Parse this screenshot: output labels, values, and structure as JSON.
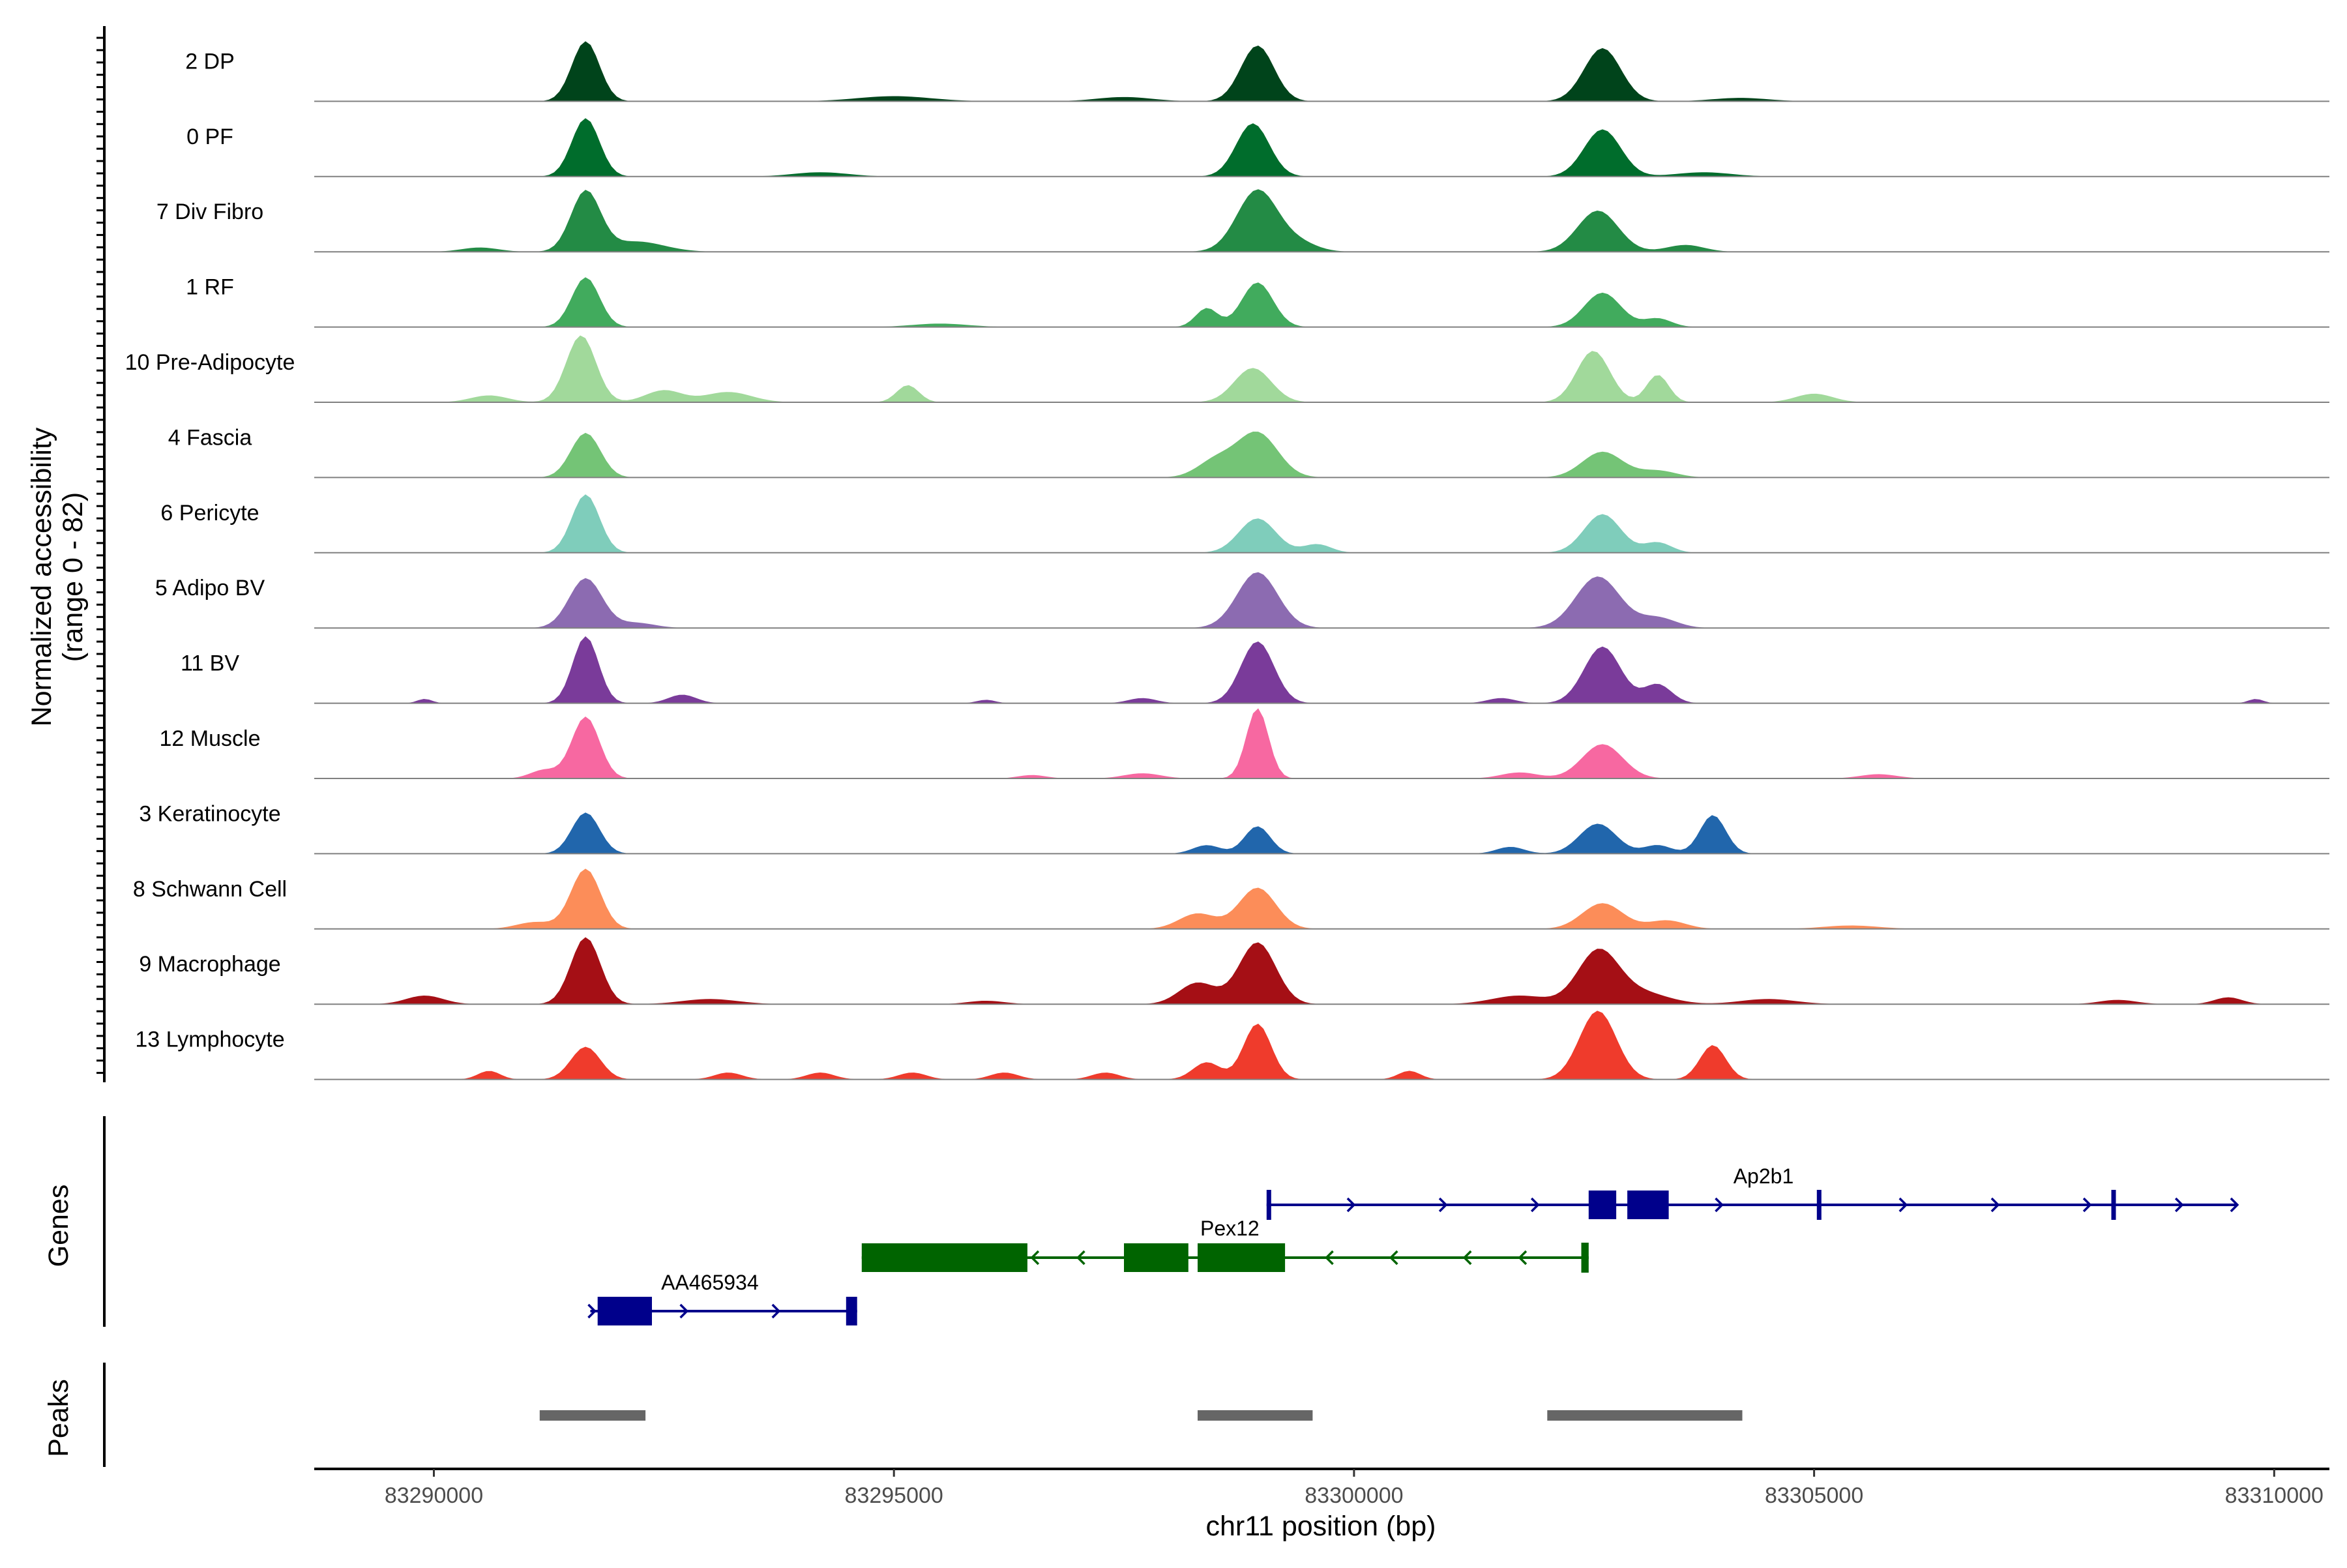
{
  "chart_data": {
    "type": "area",
    "title": "",
    "xlabel": "chr11 position (bp)",
    "ylabel": [
      "Normalized accessibility",
      "(range 0 - 82)"
    ],
    "y_range": [
      0,
      82
    ],
    "xlim": [
      83288700,
      83310600
    ],
    "x_ticks": [
      83290000,
      83295000,
      83300000,
      83305000,
      83310000
    ],
    "x_tick_labels": [
      "83290000",
      "83295000",
      "83300000",
      "83305000",
      "83310000"
    ],
    "panel_labels": {
      "genes": "Genes",
      "peaks": "Peaks"
    },
    "series": [
      {
        "name": "2 DP",
        "color": "#00441b",
        "amplitude": 1.0,
        "peaks": [
          [
            83291650,
            70,
            150
          ],
          [
            83298950,
            65,
            180
          ],
          [
            83302700,
            62,
            200
          ],
          [
            83295000,
            6,
            400
          ],
          [
            83297500,
            5,
            300
          ],
          [
            83304200,
            4,
            300
          ]
        ]
      },
      {
        "name": "0 PF",
        "color": "#006d2c",
        "amplitude": 1.0,
        "peaks": [
          [
            83291650,
            68,
            150
          ],
          [
            83298900,
            62,
            180
          ],
          [
            83302700,
            55,
            200
          ],
          [
            83294200,
            5,
            300
          ],
          [
            83303800,
            5,
            300
          ]
        ]
      },
      {
        "name": "7 Div Fibro",
        "color": "#238b45",
        "amplitude": 1.0,
        "peaks": [
          [
            83291650,
            70,
            160
          ],
          [
            83298950,
            72,
            220
          ],
          [
            83302650,
            48,
            220
          ],
          [
            83292200,
            12,
            300
          ],
          [
            83299400,
            10,
            200
          ],
          [
            83303600,
            8,
            200
          ],
          [
            83290500,
            5,
            200
          ]
        ]
      },
      {
        "name": "1 RF",
        "color": "#41ab5d",
        "amplitude": 1.0,
        "peaks": [
          [
            83291650,
            58,
            150
          ],
          [
            83298950,
            52,
            170
          ],
          [
            83302700,
            40,
            200
          ],
          [
            83298400,
            22,
            120
          ],
          [
            83303300,
            10,
            150
          ],
          [
            83295500,
            4,
            300
          ]
        ]
      },
      {
        "name": "10 Pre-Adipocyte",
        "color": "#a1d99b",
        "amplitude": 1.0,
        "peaks": [
          [
            83291600,
            78,
            160
          ],
          [
            83298900,
            40,
            200
          ],
          [
            83302600,
            60,
            180
          ],
          [
            83303300,
            32,
            120
          ],
          [
            83295150,
            20,
            120
          ],
          [
            83293200,
            12,
            250
          ],
          [
            83292500,
            14,
            200
          ],
          [
            83290600,
            8,
            200
          ],
          [
            83305000,
            10,
            200
          ]
        ]
      },
      {
        "name": "4 Fascia",
        "color": "#74c476",
        "amplitude": 1.0,
        "peaks": [
          [
            83291650,
            52,
            160
          ],
          [
            83298950,
            52,
            220
          ],
          [
            83302700,
            30,
            220
          ],
          [
            83298500,
            20,
            200
          ],
          [
            83303300,
            8,
            200
          ]
        ]
      },
      {
        "name": "6 Pericyte",
        "color": "#7fcdbb",
        "amplitude": 1.0,
        "peaks": [
          [
            83291650,
            68,
            150
          ],
          [
            83298950,
            40,
            200
          ],
          [
            83302700,
            45,
            200
          ],
          [
            83299600,
            10,
            150
          ],
          [
            83303300,
            12,
            150
          ]
        ]
      },
      {
        "name": "5 Adipo BV",
        "color": "#8c6bb1",
        "amplitude": 1.0,
        "peaks": [
          [
            83291650,
            58,
            180
          ],
          [
            83298950,
            65,
            220
          ],
          [
            83302650,
            60,
            240
          ],
          [
            83303300,
            12,
            200
          ],
          [
            83292200,
            6,
            200
          ]
        ]
      },
      {
        "name": "11 BV",
        "color": "#7a3b9a",
        "amplitude": 1.0,
        "peaks": [
          [
            83291650,
            78,
            140
          ],
          [
            83298950,
            72,
            180
          ],
          [
            83302700,
            66,
            200
          ],
          [
            83303300,
            22,
            150
          ],
          [
            83292700,
            10,
            150
          ],
          [
            83289900,
            5,
            80
          ],
          [
            83296000,
            4,
            100
          ],
          [
            83309800,
            5,
            80
          ],
          [
            83297700,
            6,
            150
          ],
          [
            83301600,
            6,
            150
          ]
        ]
      },
      {
        "name": "12 Muscle",
        "color": "#f768a1",
        "amplitude": 1.0,
        "peaks": [
          [
            83291650,
            72,
            150
          ],
          [
            83298950,
            82,
            120
          ],
          [
            83302700,
            40,
            220
          ],
          [
            83291200,
            10,
            150
          ],
          [
            83297700,
            6,
            200
          ],
          [
            83301800,
            7,
            200
          ],
          [
            83305700,
            5,
            200
          ],
          [
            83296500,
            4,
            150
          ]
        ]
      },
      {
        "name": "3 Keratinocyte",
        "color": "#2166ac",
        "amplitude": 1.0,
        "peaks": [
          [
            83291650,
            48,
            150
          ],
          [
            83298950,
            32,
            140
          ],
          [
            83302650,
            35,
            200
          ],
          [
            83303900,
            45,
            140
          ],
          [
            83298400,
            10,
            150
          ],
          [
            83301700,
            8,
            150
          ],
          [
            83303300,
            10,
            150
          ]
        ]
      },
      {
        "name": "8 Schwann Cell",
        "color": "#fc8d59",
        "amplitude": 1.0,
        "peaks": [
          [
            83291650,
            70,
            160
          ],
          [
            83298950,
            48,
            200
          ],
          [
            83302700,
            30,
            220
          ],
          [
            83298300,
            18,
            200
          ],
          [
            83303400,
            10,
            200
          ],
          [
            83291100,
            8,
            200
          ],
          [
            83305400,
            4,
            300
          ]
        ]
      },
      {
        "name": "9 Macrophage",
        "color": "#a50f15",
        "amplitude": 1.0,
        "peaks": [
          [
            83291650,
            78,
            160
          ],
          [
            83298950,
            72,
            200
          ],
          [
            83302650,
            60,
            220
          ],
          [
            83298300,
            25,
            200
          ],
          [
            83303100,
            14,
            300
          ],
          [
            83289900,
            10,
            200
          ],
          [
            83293000,
            6,
            300
          ],
          [
            83301800,
            10,
            300
          ],
          [
            83304500,
            6,
            300
          ],
          [
            83309500,
            8,
            150
          ],
          [
            83308300,
            5,
            200
          ],
          [
            83296000,
            4,
            200
          ]
        ]
      },
      {
        "name": "13 Lymphocyte",
        "color": "#ef3b2c",
        "amplitude": 1.0,
        "peaks": [
          [
            83291650,
            38,
            160
          ],
          [
            83298950,
            65,
            150
          ],
          [
            83302650,
            80,
            200
          ],
          [
            83303900,
            40,
            140
          ],
          [
            83298400,
            20,
            150
          ],
          [
            83290600,
            10,
            120
          ],
          [
            83293200,
            8,
            150
          ],
          [
            83294200,
            8,
            150
          ],
          [
            83295200,
            8,
            150
          ],
          [
            83296200,
            8,
            150
          ],
          [
            83297300,
            8,
            150
          ],
          [
            83300600,
            10,
            120
          ]
        ]
      }
    ],
    "genes": [
      {
        "name": "Ap2b1",
        "strand": "+",
        "color": "#00008b",
        "row": 0,
        "start": 83299050,
        "end": 83309600,
        "exons": [
          [
            83302550,
            83302850
          ],
          [
            83302970,
            83303420
          ],
          [
            83305030,
            83305060
          ],
          [
            83308230,
            83308260
          ],
          [
            83299050,
            83299080
          ]
        ],
        "label_pos": 83304450,
        "arrows": [
          83300000,
          83301000,
          83302000,
          83304000,
          83306000,
          83307000,
          83308000,
          83309000,
          83309600
        ]
      },
      {
        "name": "Pex12",
        "strand": "-",
        "color": "#006400",
        "row": 1,
        "start": 83294650,
        "end": 83302550,
        "exons": [
          [
            83294650,
            83296450
          ],
          [
            83297500,
            83298200
          ],
          [
            83298300,
            83299250
          ],
          [
            83302470,
            83302550
          ]
        ],
        "label_pos": 83298650,
        "arrows": [
          83296500,
          83297000,
          83299700,
          83300400,
          83301200,
          83301800
        ]
      },
      {
        "name": "AA465934",
        "strand": "+",
        "color": "#00008b",
        "row": 2,
        "start": 83291700,
        "end": 83294600,
        "exons": [
          [
            83291780,
            83292370
          ],
          [
            83294480,
            83294600
          ]
        ],
        "label_pos": 83293000,
        "arrows": [
          83291750,
          83292750,
          83293750
        ]
      }
    ],
    "peak_regions": [
      [
        83291150,
        83292300
      ],
      [
        83298300,
        83299550
      ],
      [
        83302100,
        83304220
      ]
    ]
  }
}
